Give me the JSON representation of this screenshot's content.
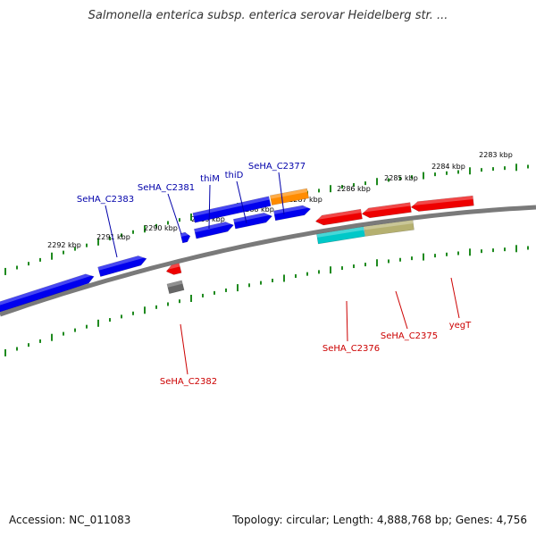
{
  "title": "Salmonella enterica subsp. enterica serovar Heidelberg str. ...",
  "footer": {
    "accession": "Accession: NC_011083",
    "summary": "Topology: circular; Length: 4,888,768 bp; Genes: 4,756"
  },
  "colors": {
    "backbone": "#7a7a7a",
    "ticks": "#1f8a1f",
    "forward_label": "#0000aa",
    "reverse_label": "#cc0000"
  },
  "ticks": [
    {
      "label": "2283 kbp"
    },
    {
      "label": "2284 kbp"
    },
    {
      "label": "2285 kbp"
    },
    {
      "label": "2286 kbp"
    },
    {
      "label": "2287 kbp"
    },
    {
      "label": "2288 kbp"
    },
    {
      "label": "2289 kbp"
    },
    {
      "label": "2290 kbp"
    },
    {
      "label": "2291 kbp"
    },
    {
      "label": "2292 kbp"
    }
  ],
  "genes": [
    {
      "name": "SeHA_C2383",
      "strand": "forward",
      "color": "#0000ee",
      "labeled": true
    },
    {
      "name": "SeHA_C2381",
      "strand": "forward",
      "color": "#0000ee",
      "labeled": true
    },
    {
      "name": "thiM",
      "strand": "forward",
      "color": "#0000ee",
      "labeled": true
    },
    {
      "name": "thiD",
      "strand": "forward",
      "color": "#0000ee",
      "labeled": true
    },
    {
      "name": "SeHA_C2377",
      "strand": "forward",
      "color": "#ff8c00",
      "labeled": true
    },
    {
      "name": "",
      "strand": "forward",
      "color": "#0000ee",
      "labeled": false
    },
    {
      "name": "",
      "strand": "forward",
      "color": "#0000ee",
      "labeled": false
    },
    {
      "name": "",
      "strand": "forward",
      "color": "#0000ee",
      "labeled": false
    },
    {
      "name": "SeHA_C2382",
      "strand": "reverse",
      "color": "#ee0000",
      "labeled": true
    },
    {
      "name": "",
      "strand": "reverse",
      "color": "#666666",
      "labeled": false
    },
    {
      "name": "SeHA_C2376",
      "strand": "reverse",
      "color": "#00c8c8",
      "labeled": true
    },
    {
      "name": "SeHA_C2375",
      "strand": "reverse",
      "color": "#b5b070",
      "labeled": true
    },
    {
      "name": "yegT",
      "strand": "reverse",
      "color": "#ee0000",
      "labeled": true
    },
    {
      "name": "",
      "strand": "reverse",
      "color": "#ee0000",
      "labeled": false
    },
    {
      "name": "",
      "strand": "reverse",
      "color": "#ee0000",
      "labeled": false
    }
  ]
}
